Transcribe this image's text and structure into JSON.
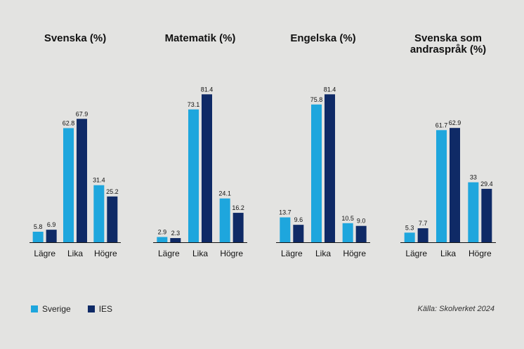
{
  "colors": {
    "sverige": "#1ea6dd",
    "ies": "#0f2a66",
    "text": "#111111",
    "axis": "#111111"
  },
  "legend": {
    "items": [
      {
        "label": "Sverige",
        "color": "#1ea6dd"
      },
      {
        "label": "IES",
        "color": "#0f2a66"
      }
    ]
  },
  "source": "Källa: Skolverket 2024",
  "chart_data": [
    {
      "type": "bar",
      "title": "Svenska (%)",
      "categories": [
        "Lägre",
        "Lika",
        "Högre"
      ],
      "series": [
        {
          "name": "Sverige",
          "values": [
            5.8,
            62.8,
            31.4
          ],
          "labels": [
            "5.8",
            "62.8",
            "31.4"
          ]
        },
        {
          "name": "IES",
          "values": [
            6.9,
            67.9,
            25.2
          ],
          "labels": [
            "6.9",
            "67.9",
            "25.2"
          ]
        }
      ],
      "ylim": [
        0,
        85
      ]
    },
    {
      "type": "bar",
      "title": "Matematik (%)",
      "categories": [
        "Lägre",
        "Lika",
        "Högre"
      ],
      "series": [
        {
          "name": "Sverige",
          "values": [
            2.9,
            73.1,
            24.1
          ],
          "labels": [
            "2.9",
            "73.1",
            "24.1"
          ]
        },
        {
          "name": "IES",
          "values": [
            2.3,
            81.4,
            16.2
          ],
          "labels": [
            "2.3",
            "81.4",
            "16.2"
          ]
        }
      ],
      "ylim": [
        0,
        85
      ]
    },
    {
      "type": "bar",
      "title": "Engelska (%)",
      "categories": [
        "Lägre",
        "Lika",
        "Högre"
      ],
      "series": [
        {
          "name": "Sverige",
          "values": [
            13.7,
            75.8,
            10.5
          ],
          "labels": [
            "13.7",
            "75.8",
            "10.5"
          ]
        },
        {
          "name": "IES",
          "values": [
            9.6,
            81.4,
            9.0
          ],
          "labels": [
            "9.6",
            "81.4",
            "9.0"
          ]
        }
      ],
      "ylim": [
        0,
        85
      ]
    },
    {
      "type": "bar",
      "title": "Svenska som andraspråk (%)",
      "title_lines": [
        "Svenska som",
        "andraspråk (%)"
      ],
      "categories": [
        "Lägre",
        "Lika",
        "Högre"
      ],
      "series": [
        {
          "name": "Sverige",
          "values": [
            5.3,
            61.7,
            33
          ],
          "labels": [
            "5.3",
            "61.7",
            "33"
          ]
        },
        {
          "name": "IES",
          "values": [
            7.7,
            62.9,
            29.4
          ],
          "labels": [
            "7.7",
            "62.9",
            "29.4"
          ]
        }
      ],
      "ylim": [
        0,
        85
      ]
    }
  ]
}
